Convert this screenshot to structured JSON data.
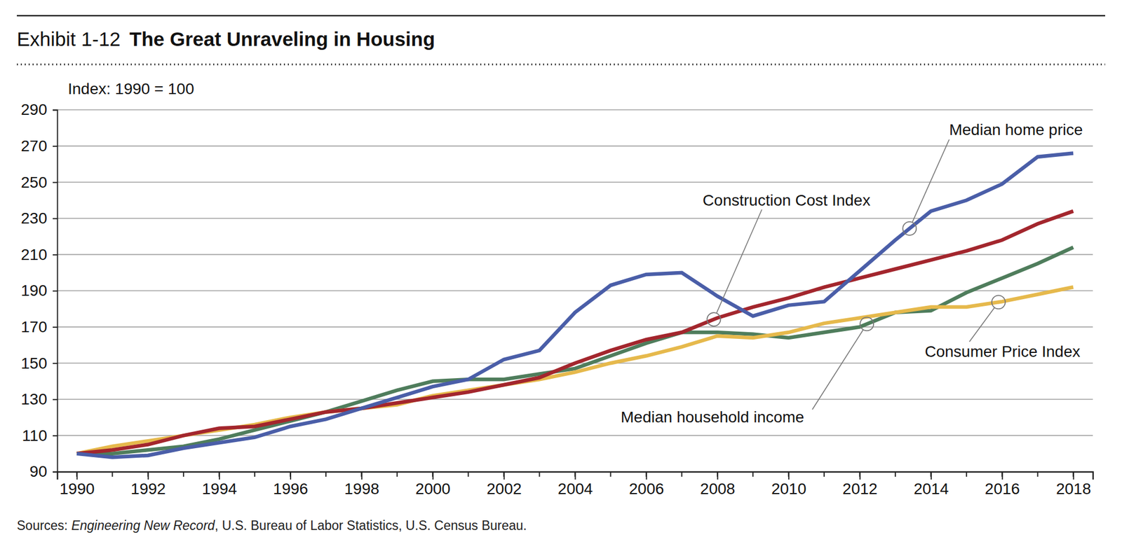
{
  "chart_data": {
    "type": "line",
    "exhibit": "Exhibit 1-12",
    "title": "The Great Unraveling in Housing",
    "y_label": "Index: 1990 = 100",
    "source": [
      "Sources: ",
      "Engineering New Record",
      ", U.S. Bureau of Labor Statistics, U.S. Census Bureau."
    ],
    "x": [
      1990,
      1991,
      1992,
      1993,
      1994,
      1995,
      1996,
      1997,
      1998,
      1999,
      2000,
      2001,
      2002,
      2003,
      2004,
      2005,
      2006,
      2007,
      2008,
      2009,
      2010,
      2011,
      2012,
      2013,
      2014,
      2015,
      2016,
      2017,
      2018
    ],
    "xlim": [
      1989.45,
      2018.55
    ],
    "xticks": [
      1990,
      1992,
      1994,
      1996,
      1998,
      2000,
      2002,
      2004,
      2006,
      2008,
      2010,
      2012,
      2014,
      2016,
      2018
    ],
    "ylim": [
      90,
      290
    ],
    "yticks": [
      90,
      110,
      130,
      150,
      170,
      190,
      210,
      230,
      250,
      270,
      290
    ],
    "grid": true,
    "series": [
      {
        "name": "Median home price",
        "color": "#4a5ea8",
        "values": [
          100,
          98,
          99,
          103,
          106,
          109,
          115,
          119,
          125,
          131,
          137,
          141,
          152,
          157,
          178,
          193,
          199,
          200,
          187,
          176,
          182,
          184,
          201,
          218,
          234,
          240,
          249,
          264,
          266
        ]
      },
      {
        "name": "Construction Cost Index",
        "color": "#a3262d",
        "values": [
          100,
          102,
          105,
          110,
          114,
          115,
          119,
          123,
          125,
          128,
          131,
          134,
          138,
          142,
          150,
          157,
          163,
          167,
          175,
          181,
          186,
          192,
          197,
          202,
          207,
          212,
          218,
          227,
          234
        ]
      },
      {
        "name": "Consumer Price Index",
        "color": "#e6b94c",
        "values": [
          100,
          104,
          107,
          110,
          113,
          116,
          120,
          123,
          125,
          127,
          132,
          135,
          138,
          141,
          145,
          150,
          154,
          159,
          165,
          164,
          167,
          172,
          175,
          178,
          181,
          181,
          184,
          188,
          192
        ]
      },
      {
        "name": "Median household income",
        "color": "#4f7d5c",
        "values": [
          100,
          100,
          102,
          104,
          108,
          113,
          118,
          123,
          129,
          135,
          140,
          141,
          141,
          144,
          147,
          154,
          161,
          167,
          167,
          166,
          164,
          167,
          170,
          178,
          179,
          189,
          197,
          205,
          214
        ]
      }
    ]
  }
}
